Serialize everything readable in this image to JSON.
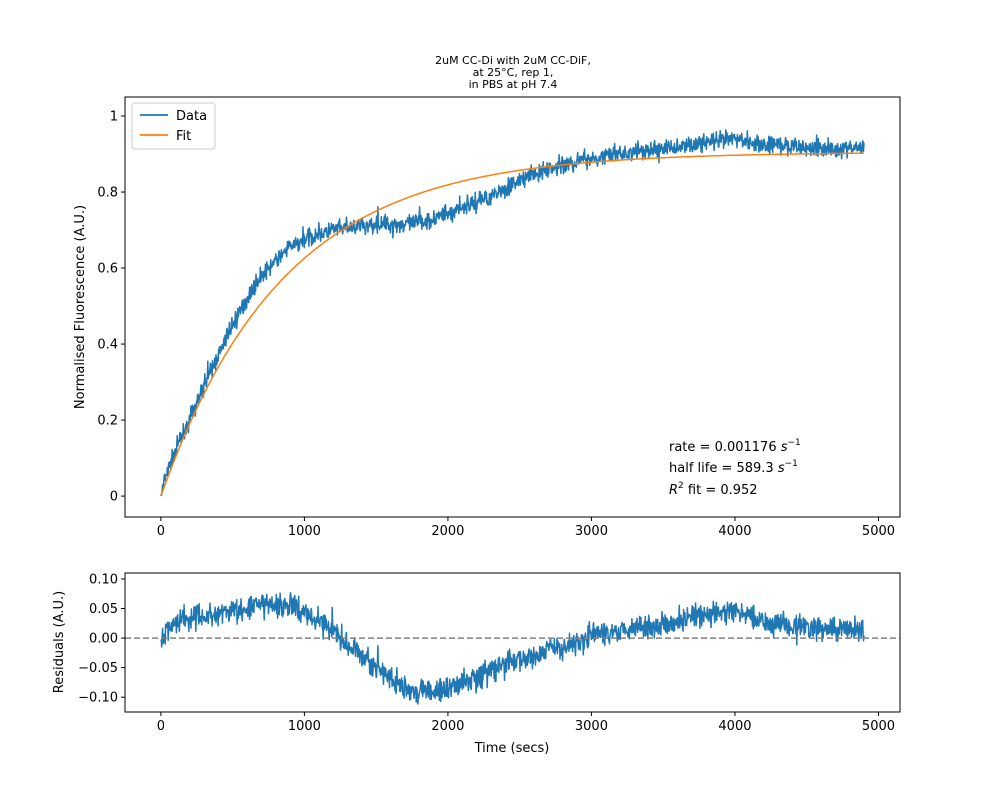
{
  "chart_data": [
    {
      "type": "line",
      "title_lines": [
        "2uM CC-Di with 2uM CC-DiF,",
        "at 25°C, rep 1,",
        "in PBS at pH 7.4"
      ],
      "xlabel": "",
      "ylabel": "Normalised Fluorescence (A.U.)",
      "xlim": [
        -250,
        5150
      ],
      "ylim": [
        -0.055,
        1.05
      ],
      "xticks": [
        0,
        1000,
        2000,
        3000,
        4000,
        5000
      ],
      "yticks": [
        0.0,
        0.2,
        0.4,
        0.6,
        0.8,
        1.0
      ],
      "legend_position": "top-left",
      "series": [
        {
          "name": "Data",
          "color": "#1f77b4",
          "noise_amplitude": 0.025,
          "points": [
            [
              0,
              0.0
            ],
            [
              25,
              0.04
            ],
            [
              100,
              0.12
            ],
            [
              200,
              0.2
            ],
            [
              300,
              0.29
            ],
            [
              400,
              0.37
            ],
            [
              500,
              0.45
            ],
            [
              600,
              0.52
            ],
            [
              700,
              0.58
            ],
            [
              800,
              0.62
            ],
            [
              900,
              0.655
            ],
            [
              1000,
              0.675
            ],
            [
              1100,
              0.69
            ],
            [
              1200,
              0.7
            ],
            [
              1300,
              0.705
            ],
            [
              1400,
              0.71
            ],
            [
              1500,
              0.715
            ],
            [
              1600,
              0.715
            ],
            [
              1700,
              0.715
            ],
            [
              1800,
              0.72
            ],
            [
              1900,
              0.73
            ],
            [
              2000,
              0.745
            ],
            [
              2100,
              0.76
            ],
            [
              2200,
              0.775
            ],
            [
              2300,
              0.79
            ],
            [
              2400,
              0.81
            ],
            [
              2500,
              0.83
            ],
            [
              2600,
              0.845
            ],
            [
              2700,
              0.86
            ],
            [
              2800,
              0.87
            ],
            [
              2900,
              0.88
            ],
            [
              3000,
              0.89
            ],
            [
              3200,
              0.9
            ],
            [
              3400,
              0.91
            ],
            [
              3600,
              0.92
            ],
            [
              3800,
              0.93
            ],
            [
              4000,
              0.94
            ],
            [
              4100,
              0.935
            ],
            [
              4200,
              0.925
            ],
            [
              4400,
              0.92
            ],
            [
              4600,
              0.915
            ],
            [
              4800,
              0.915
            ],
            [
              4900,
              0.915
            ]
          ]
        },
        {
          "name": "Fit",
          "color": "#ff7f0e",
          "model": "y = A*(1-exp(-k*t))",
          "amplitude": 0.905,
          "rate": 0.001176,
          "x_range": [
            0,
            4900
          ]
        }
      ],
      "annotations": [
        {
          "label": "rate = 0.001176 ",
          "sym": "s",
          "sup": "−1"
        },
        {
          "label": "half life = 589.3 ",
          "sym": "s",
          "sup": "−1"
        },
        {
          "sym": "R",
          "sup": "2",
          "label": " fit = 0.952"
        }
      ]
    },
    {
      "type": "line",
      "title": "",
      "xlabel": "Time (secs)",
      "ylabel": "Residuals (A.U.)",
      "xlim": [
        -250,
        5150
      ],
      "ylim": [
        -0.125,
        0.11
      ],
      "xticks": [
        0,
        1000,
        2000,
        3000,
        4000,
        5000
      ],
      "yticks": [
        -0.1,
        -0.05,
        0.0,
        0.05,
        0.1
      ],
      "zero_line": {
        "y": 0,
        "color": "#808080",
        "style": "dashed"
      },
      "series": [
        {
          "color": "#1f77b4",
          "noise_amplitude": 0.022,
          "points": [
            [
              0,
              -0.005
            ],
            [
              50,
              0.02
            ],
            [
              150,
              0.035
            ],
            [
              300,
              0.035
            ],
            [
              500,
              0.045
            ],
            [
              700,
              0.055
            ],
            [
              900,
              0.055
            ],
            [
              1000,
              0.045
            ],
            [
              1100,
              0.03
            ],
            [
              1200,
              0.015
            ],
            [
              1300,
              -0.01
            ],
            [
              1400,
              -0.03
            ],
            [
              1500,
              -0.05
            ],
            [
              1600,
              -0.07
            ],
            [
              1700,
              -0.085
            ],
            [
              1800,
              -0.09
            ],
            [
              1900,
              -0.09
            ],
            [
              2000,
              -0.085
            ],
            [
              2100,
              -0.075
            ],
            [
              2200,
              -0.065
            ],
            [
              2300,
              -0.055
            ],
            [
              2400,
              -0.045
            ],
            [
              2500,
              -0.035
            ],
            [
              2600,
              -0.03
            ],
            [
              2700,
              -0.02
            ],
            [
              2800,
              -0.015
            ],
            [
              2900,
              -0.005
            ],
            [
              3000,
              0.005
            ],
            [
              3200,
              0.015
            ],
            [
              3400,
              0.02
            ],
            [
              3600,
              0.03
            ],
            [
              3800,
              0.04
            ],
            [
              4000,
              0.045
            ],
            [
              4100,
              0.04
            ],
            [
              4200,
              0.03
            ],
            [
              4400,
              0.02
            ],
            [
              4600,
              0.015
            ],
            [
              4800,
              0.015
            ],
            [
              4900,
              0.015
            ]
          ]
        }
      ]
    }
  ]
}
